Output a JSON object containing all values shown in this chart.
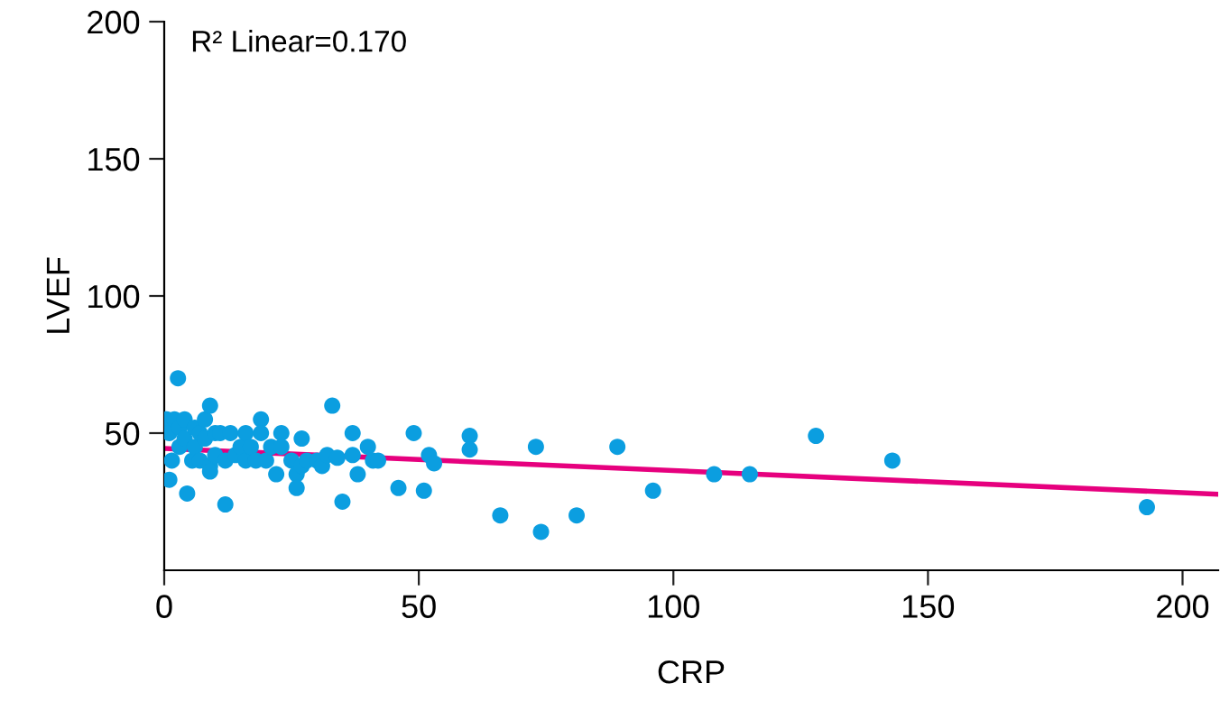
{
  "chart_data": {
    "type": "scatter",
    "xlabel": "CRP",
    "ylabel": "LVEF",
    "annotations": [
      "R² Linear=0.170"
    ],
    "xlim": [
      0,
      207
    ],
    "ylim": [
      0,
      200
    ],
    "xticks": [
      0,
      50,
      100,
      150,
      200
    ],
    "yticks": [
      50,
      100,
      150,
      200
    ],
    "grid": false,
    "marker": "circle",
    "series": [
      {
        "color": "#0b9ee0",
        "x": [
          0.5,
          1,
          1.5,
          1,
          2,
          3,
          2.7,
          3,
          4,
          4,
          4.5,
          5.5,
          6,
          6,
          7,
          7,
          8,
          8,
          9,
          9,
          9,
          10,
          10,
          11,
          12,
          12,
          13,
          14,
          15,
          16,
          16,
          17,
          18,
          19,
          19,
          20,
          21,
          22,
          23,
          23,
          25,
          26,
          26,
          27,
          27,
          28,
          30,
          31,
          32,
          33,
          34,
          35,
          37,
          37,
          38,
          40,
          41,
          42,
          46,
          49,
          52,
          53,
          51,
          60,
          60,
          66,
          73,
          74,
          81,
          89,
          96,
          108,
          115,
          128,
          143,
          193
        ],
        "values": [
          55,
          50,
          40,
          33,
          55,
          52,
          70,
          45,
          55,
          48,
          28,
          40,
          45,
          52,
          50,
          40,
          55,
          48,
          60,
          38,
          36,
          50,
          42,
          50,
          40,
          24,
          50,
          42,
          45,
          50,
          40,
          45,
          40,
          55,
          50,
          40,
          45,
          35,
          50,
          45,
          40,
          35,
          30,
          48,
          38,
          40,
          40,
          38,
          42,
          60,
          41,
          25,
          50,
          42,
          35,
          45,
          40,
          40,
          30,
          50,
          42,
          39,
          29,
          49,
          44,
          20,
          45,
          14,
          20,
          45,
          29,
          35,
          35,
          49,
          40,
          23
        ]
      },
      {
        "type": "line",
        "color": "#e6007e",
        "x": [
          0,
          207
        ],
        "values": [
          44.4,
          27.7
        ],
        "marker": "none"
      }
    ]
  }
}
